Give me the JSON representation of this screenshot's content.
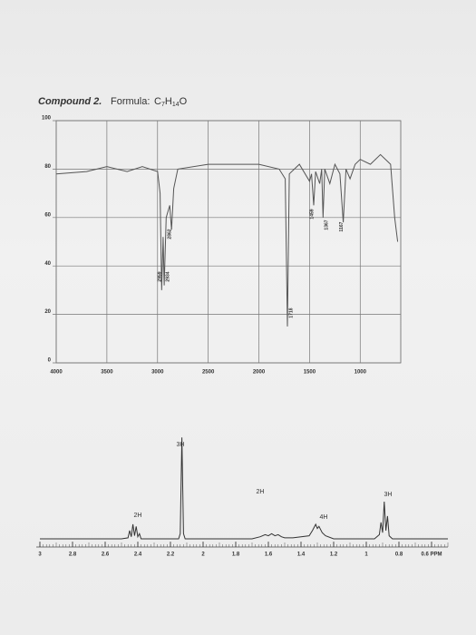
{
  "header": {
    "compound": "Compound 2.",
    "formula_label": "Formula:",
    "formula_parts": [
      "C",
      "7",
      "H",
      "14",
      "O"
    ]
  },
  "chart_data": [
    {
      "type": "line",
      "color": "#555555",
      "grid": true,
      "x": [
        4000,
        3700,
        3500,
        3300,
        3150,
        3000,
        2975,
        2959,
        2945,
        2934,
        2915,
        2880,
        2862,
        2840,
        2800,
        2500,
        2000,
        1800,
        1740,
        1718,
        1700,
        1600,
        1500,
        1480,
        1459,
        1440,
        1400,
        1380,
        1367,
        1350,
        1300,
        1250,
        1200,
        1167,
        1140,
        1100,
        1050,
        1000,
        900,
        800,
        700,
        660,
        630
      ],
      "values": [
        78,
        79,
        81,
        79,
        81,
        79,
        70,
        30,
        52,
        32,
        60,
        65,
        55,
        72,
        80,
        82,
        82,
        80,
        76,
        15,
        78,
        82,
        75,
        78,
        65,
        79,
        74,
        80,
        60,
        80,
        74,
        82,
        78,
        58,
        80,
        76,
        82,
        84,
        82,
        86,
        82,
        60,
        50
      ],
      "xlim": [
        4000,
        600
      ],
      "ylim": [
        0,
        100
      ],
      "xticks": [
        4000,
        3500,
        3000,
        2500,
        2000,
        1500,
        1000
      ],
      "yticks": [
        0,
        20,
        40,
        60,
        80,
        100
      ],
      "peak_labels": [
        2959,
        2934,
        2862,
        1718,
        1459,
        1367,
        1167
      ]
    },
    {
      "type": "line",
      "color": "#333333",
      "x": [
        3.0,
        2.5,
        2.46,
        2.45,
        2.44,
        2.43,
        2.42,
        2.41,
        2.4,
        2.39,
        2.38,
        2.35,
        2.15,
        2.14,
        2.13,
        2.12,
        2.11,
        2.0,
        1.7,
        1.65,
        1.62,
        1.6,
        1.58,
        1.56,
        1.54,
        1.52,
        1.5,
        1.45,
        1.35,
        1.33,
        1.31,
        1.3,
        1.29,
        1.27,
        1.25,
        1.2,
        0.95,
        0.92,
        0.91,
        0.9,
        0.89,
        0.88,
        0.87,
        0.86,
        0.84,
        0.8,
        0.6,
        0.5
      ],
      "values": [
        0,
        0,
        1,
        8,
        2,
        14,
        3,
        12,
        2,
        5,
        0,
        0,
        0,
        5,
        98,
        5,
        0,
        0,
        0,
        2,
        4,
        3,
        5,
        3,
        4,
        2,
        1,
        1,
        3,
        8,
        14,
        10,
        12,
        6,
        3,
        0,
        0,
        4,
        16,
        6,
        36,
        8,
        22,
        3,
        0,
        0,
        0,
        0
      ],
      "xlim": [
        3.0,
        0.5
      ],
      "ylim": [
        0,
        100
      ],
      "xticks": [
        3.0,
        2.8,
        2.6,
        2.4,
        2.2,
        2.0,
        1.8,
        1.6,
        1.4,
        1.2,
        1.0,
        0.8,
        {
          "value": 0.6,
          "label": "0.6 PPM"
        }
      ],
      "annotations": [
        "2H",
        "3H",
        "2H",
        "4H",
        "3H"
      ]
    }
  ]
}
